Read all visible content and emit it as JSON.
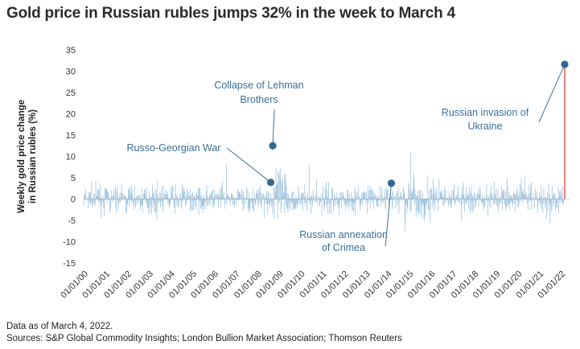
{
  "title": "Gold price in Russian rubles jumps 32% in the week to March 4",
  "footer": {
    "note": "Data as of March 4, 2022.",
    "sources": "Sources: S&P Global Commodity Insights; London Bullion Market Association; Thomson Reuters"
  },
  "colors": {
    "series": "#9fc3dd",
    "marker": "#2f6a93",
    "annotation": "#3a6f9a",
    "highlight": "#e05050"
  },
  "chart_data": {
    "type": "bar",
    "title": "Gold price in Russian rubles jumps 32% in the week to March 4",
    "ylabel_lines": [
      "Weekly gold price change",
      "in Russian rubles (%)"
    ],
    "xlabel": "",
    "ylim": [
      -15,
      35
    ],
    "yticks": [
      "35",
      "30",
      "25",
      "20",
      "15",
      "10",
      "5",
      "0",
      "-5",
      "-10",
      "-15"
    ],
    "xlim_years": [
      2000,
      2022.4
    ],
    "xticks": [
      "01/01/00",
      "01/01/01",
      "01/01/02",
      "01/01/03",
      "01/01/04",
      "01/01/05",
      "01/01/06",
      "01/01/07",
      "01/01/08",
      "01/01/09",
      "01/01/10",
      "01/01/11",
      "01/01/12",
      "01/01/13",
      "01/01/14",
      "01/01/15",
      "01/01/16",
      "01/01/17",
      "01/01/18",
      "01/01/19",
      "01/01/20",
      "01/01/21",
      "01/01/22"
    ],
    "grid": false,
    "legend": "none",
    "series_note": "weekly percentage changes, drawn as thin vertical bars; shape approximated",
    "highlight_point": {
      "date": "2022-03-04",
      "value": 31.6
    },
    "annotations": [
      {
        "lines": [
          "Collapse of Lehman",
          "Brothers"
        ],
        "date": "2008-09-19",
        "value": 12.5
      },
      {
        "lines": [
          "Russo-Georgian War"
        ],
        "date": "2008-08-15",
        "value": 3.9
      },
      {
        "lines": [
          "Russian annexation",
          "of Crimea"
        ],
        "date": "2014-03-07",
        "value": 3.7
      },
      {
        "lines": [
          "Russian invasion of",
          "Ukraine"
        ],
        "date": "2022-03-04",
        "value": 31.6
      }
    ]
  }
}
